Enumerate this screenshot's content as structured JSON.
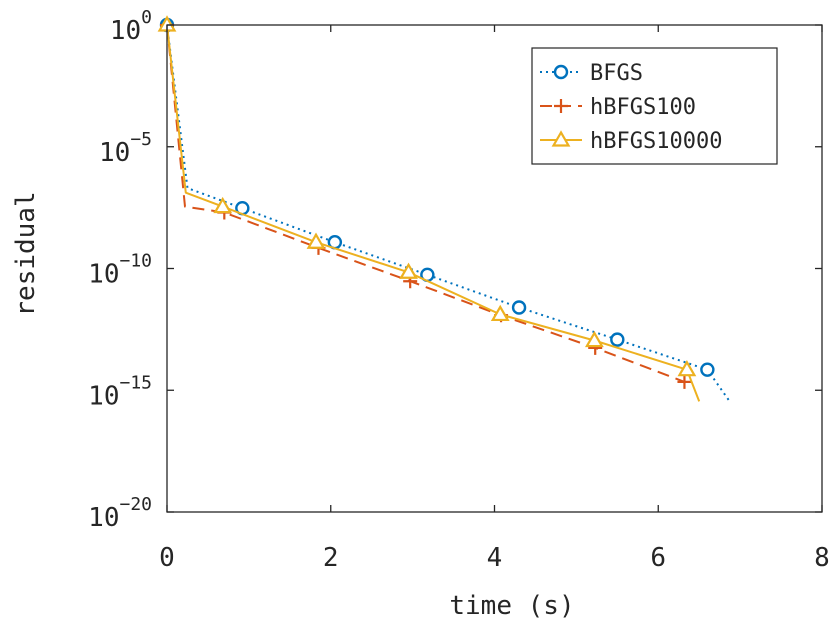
{
  "chart_data": {
    "type": "line",
    "title": "",
    "xlabel": "time (s)",
    "ylabel": "residual",
    "xlim": [
      0,
      8
    ],
    "ylim": [
      1e-20,
      1
    ],
    "yscale": "log",
    "grid": false,
    "legend_position": "top-right",
    "x_ticks": [
      {
        "value": 0,
        "label": "0"
      },
      {
        "value": 2,
        "label": "2"
      },
      {
        "value": 4,
        "label": "4"
      },
      {
        "value": 6,
        "label": "6"
      },
      {
        "value": 8,
        "label": "8"
      }
    ],
    "y_ticks": [
      {
        "exp": 0,
        "base": "10",
        "power": "0"
      },
      {
        "exp": -5,
        "base": "10",
        "power": "−5"
      },
      {
        "exp": -10,
        "base": "10",
        "power": "−10"
      },
      {
        "exp": -15,
        "base": "10",
        "power": "−15"
      },
      {
        "exp": -20,
        "base": "10",
        "power": "−20"
      }
    ],
    "series": [
      {
        "name": "BFGS",
        "color": "#0072BD",
        "line_style": "dotted",
        "marker": "circle",
        "x": [
          0,
          0.25,
          0.92,
          2.05,
          3.18,
          4.3,
          5.5,
          6.6,
          6.88
        ],
        "y": [
          1,
          2e-07,
          3e-08,
          1.2e-09,
          5.5e-11,
          2.5e-12,
          1.2e-13,
          7e-15,
          3.2e-16
        ],
        "marker_x": [
          0,
          0.92,
          2.05,
          3.18,
          4.3,
          5.5,
          6.6
        ],
        "marker_y": [
          1,
          3e-08,
          1.2e-09,
          5.5e-11,
          2.5e-12,
          1.2e-13,
          7e-15
        ]
      },
      {
        "name": "hBFGS100",
        "color": "#D95319",
        "line_style": "dashed",
        "marker": "plus",
        "x": [
          0,
          0.22,
          0.7,
          1.85,
          2.97,
          4.08,
          5.23,
          6.32
        ],
        "y": [
          1,
          3.5e-08,
          2e-08,
          7e-10,
          3e-11,
          1.2e-12,
          5.5e-14,
          2.2e-15
        ],
        "marker_x": [
          0,
          0.7,
          1.85,
          2.97,
          4.08,
          5.23,
          6.32
        ],
        "marker_y": [
          1,
          2e-08,
          7e-10,
          3e-11,
          1.2e-12,
          5.5e-14,
          2.2e-15
        ]
      },
      {
        "name": "hBFGS10000",
        "color": "#EDB120",
        "line_style": "solid",
        "marker": "triangle",
        "x": [
          0,
          0.23,
          0.68,
          1.82,
          2.95,
          4.07,
          5.22,
          6.35,
          6.5
        ],
        "y": [
          1,
          1.3e-07,
          3.5e-08,
          1.2e-09,
          7e-11,
          1.3e-12,
          1.1e-13,
          7e-15,
          3.5e-16
        ],
        "marker_x": [
          0,
          0.68,
          1.82,
          2.95,
          4.07,
          5.22,
          6.35
        ],
        "marker_y": [
          1,
          3.5e-08,
          1.2e-09,
          7e-11,
          1.3e-12,
          1.1e-13,
          7e-15
        ]
      }
    ]
  }
}
